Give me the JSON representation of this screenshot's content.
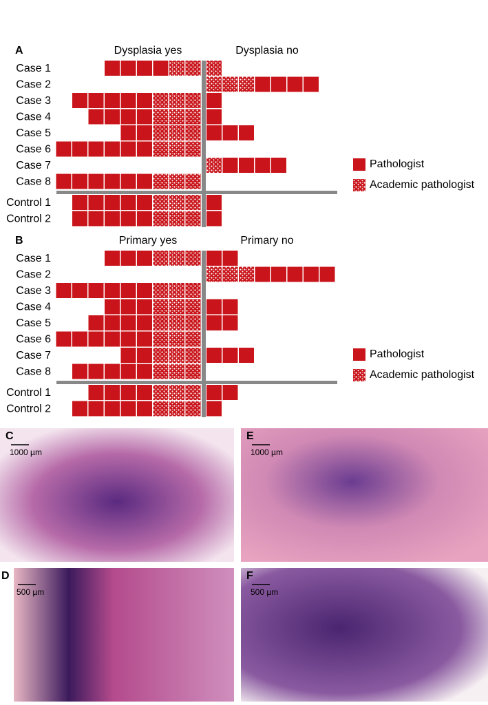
{
  "panels": [
    {
      "letter": "A",
      "yes_header": "Dysplasia yes",
      "no_header": "Dysplasia no",
      "legend": [
        "Pathologist",
        "Academic pathologist"
      ],
      "rows": [
        {
          "label": "Case 1",
          "yes_pathologist": 4,
          "yes_academic": 2,
          "no_academic": 1,
          "no_pathologist": 0
        },
        {
          "label": "Case 2",
          "yes_pathologist": 0,
          "yes_academic": 0,
          "no_academic": 3,
          "no_pathologist": 4
        },
        {
          "label": "Case 3",
          "yes_pathologist": 5,
          "yes_academic": 3,
          "no_academic": 0,
          "no_pathologist": 1
        },
        {
          "label": "Case 4",
          "yes_pathologist": 4,
          "yes_academic": 3,
          "no_academic": 0,
          "no_pathologist": 1
        },
        {
          "label": "Case 5",
          "yes_pathologist": 2,
          "yes_academic": 3,
          "no_academic": 0,
          "no_pathologist": 3
        },
        {
          "label": "Case 6",
          "yes_pathologist": 6,
          "yes_academic": 3,
          "no_academic": 0,
          "no_pathologist": 0
        },
        {
          "label": "Case 7",
          "yes_pathologist": 0,
          "yes_academic": 0,
          "no_academic": 1,
          "no_pathologist": 4
        },
        {
          "label": "Case 8",
          "yes_pathologist": 6,
          "yes_academic": 3,
          "no_academic": 0,
          "no_pathologist": 0
        },
        {
          "label": "Control 1",
          "yes_pathologist": 5,
          "yes_academic": 3,
          "no_academic": 0,
          "no_pathologist": 1
        },
        {
          "label": "Control 2",
          "yes_pathologist": 5,
          "yes_academic": 3,
          "no_academic": 0,
          "no_pathologist": 1
        }
      ]
    },
    {
      "letter": "B",
      "yes_header": "Primary yes",
      "no_header": "Primary no",
      "legend": [
        "Pathologist",
        "Academic pathologist"
      ],
      "rows": [
        {
          "label": "Case 1",
          "yes_pathologist": 3,
          "yes_academic": 3,
          "no_academic": 0,
          "no_pathologist": 2
        },
        {
          "label": "Case 2",
          "yes_pathologist": 0,
          "yes_academic": 0,
          "no_academic": 3,
          "no_pathologist": 5
        },
        {
          "label": "Case 3",
          "yes_pathologist": 6,
          "yes_academic": 3,
          "no_academic": 0,
          "no_pathologist": 0
        },
        {
          "label": "Case 4",
          "yes_pathologist": 3,
          "yes_academic": 3,
          "no_academic": 0,
          "no_pathologist": 2
        },
        {
          "label": "Case 5",
          "yes_pathologist": 4,
          "yes_academic": 3,
          "no_academic": 0,
          "no_pathologist": 2
        },
        {
          "label": "Case 6",
          "yes_pathologist": 6,
          "yes_academic": 3,
          "no_academic": 0,
          "no_pathologist": 0
        },
        {
          "label": "Case 7",
          "yes_pathologist": 2,
          "yes_academic": 3,
          "no_academic": 0,
          "no_pathologist": 3
        },
        {
          "label": "Case 8",
          "yes_pathologist": 5,
          "yes_academic": 3,
          "no_academic": 0,
          "no_pathologist": 0
        },
        {
          "label": "Control 1",
          "yes_pathologist": 4,
          "yes_academic": 3,
          "no_academic": 0,
          "no_pathologist": 2
        },
        {
          "label": "Control 2",
          "yes_pathologist": 5,
          "yes_academic": 3,
          "no_academic": 0,
          "no_pathologist": 1
        }
      ]
    }
  ],
  "images": [
    {
      "letter": "C",
      "scale": "1000 µm"
    },
    {
      "letter": "E",
      "scale": "1000 µm"
    },
    {
      "letter": "D",
      "scale": "500 µm"
    },
    {
      "letter": "F",
      "scale": "500 µm"
    }
  ]
}
